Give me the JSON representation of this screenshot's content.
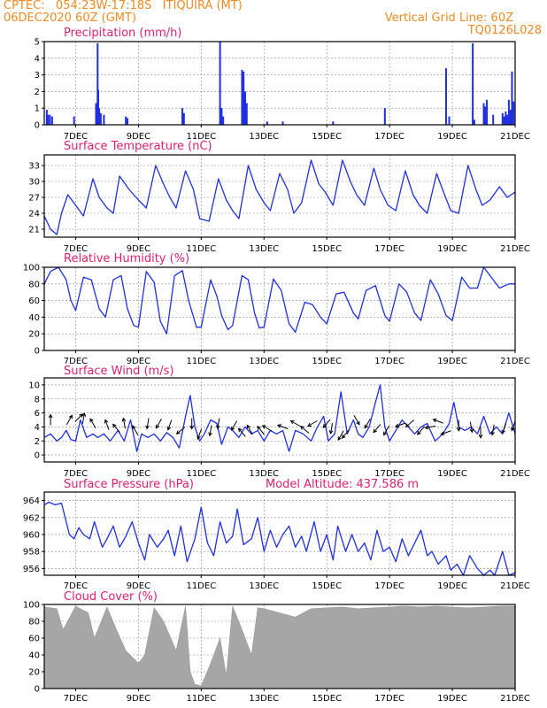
{
  "header": {
    "line1_left": "CPTEC:   054:23W-17:18S   ITIQUIRA (MT)",
    "line2_left": "06DEC2020 60Z (GMT)",
    "line2_right": "Vertical Grid Line: 60Z",
    "line3_right": "TQ0126L028"
  },
  "colors": {
    "header": "#f08a24",
    "title": "#e0206f",
    "series": "#1f2fe0",
    "cloud": "#a6a6a6"
  },
  "x_axis": {
    "labels": [
      "7DEC",
      "9DEC",
      "11DEC",
      "13DEC",
      "15DEC",
      "17DEC",
      "19DEC",
      "21DEC"
    ],
    "days": [
      7,
      9,
      11,
      13,
      15,
      17,
      19,
      21
    ],
    "range": [
      6.0,
      21.0
    ]
  },
  "chart_data": [
    {
      "id": "precip",
      "type": "bar",
      "title": "Precipitation (mm/h)",
      "ylim": [
        0,
        5
      ],
      "yticks": [
        0,
        1,
        2,
        3,
        4,
        5
      ],
      "x": [
        6.08,
        6.12,
        6.18,
        6.25,
        6.95,
        7.65,
        7.7,
        7.72,
        7.75,
        7.8,
        7.9,
        8.6,
        8.65,
        10.4,
        10.45,
        11.6,
        11.65,
        11.7,
        12.3,
        12.35,
        12.4,
        12.45,
        13.1,
        13.6,
        15.2,
        16.85,
        18.8,
        18.9,
        19.65,
        19.7,
        20.0,
        20.05,
        20.1,
        20.3,
        20.6,
        20.65,
        20.7,
        20.75,
        20.8,
        20.85,
        20.9,
        20.95
      ],
      "values": [
        0.9,
        0.6,
        0.6,
        0.5,
        0.5,
        1.3,
        4.9,
        2.1,
        1.0,
        0.7,
        0.6,
        0.5,
        0.4,
        1.0,
        0.7,
        5.0,
        1.0,
        0.5,
        3.3,
        3.2,
        2.0,
        1.3,
        0.2,
        0.2,
        0.2,
        1.0,
        3.4,
        0.5,
        4.9,
        0.3,
        1.3,
        1.1,
        1.5,
        0.6,
        0.7,
        0.5,
        0.8,
        0.6,
        1.5,
        0.9,
        3.2,
        1.4
      ]
    },
    {
      "id": "temp",
      "type": "line",
      "title": "Surface Temperature (nC)",
      "ylim": [
        19.5,
        35
      ],
      "yticks": [
        21,
        24,
        27,
        30,
        33
      ],
      "x": [
        6.0,
        6.2,
        6.4,
        6.55,
        6.75,
        7.0,
        7.25,
        7.55,
        7.75,
        8.0,
        8.2,
        8.4,
        8.7,
        9.0,
        9.25,
        9.55,
        9.8,
        10.0,
        10.2,
        10.5,
        10.75,
        10.95,
        11.25,
        11.55,
        11.8,
        12.0,
        12.2,
        12.5,
        12.75,
        13.0,
        13.2,
        13.5,
        13.75,
        13.95,
        14.2,
        14.5,
        14.75,
        14.95,
        15.2,
        15.5,
        15.75,
        15.95,
        16.2,
        16.5,
        16.7,
        16.95,
        17.2,
        17.5,
        17.75,
        17.95,
        18.2,
        18.5,
        18.75,
        18.95,
        19.2,
        19.5,
        19.75,
        19.95,
        20.2,
        20.5,
        20.75,
        21.0
      ],
      "values": [
        23.5,
        21.0,
        20.0,
        24.0,
        27.5,
        25.5,
        23.5,
        30.5,
        27.0,
        25.0,
        24.0,
        31.0,
        28.5,
        26.5,
        25.0,
        33.0,
        29.5,
        27.0,
        25.0,
        32.0,
        28.5,
        23.0,
        22.5,
        30.5,
        26.5,
        24.5,
        23.0,
        33.0,
        28.5,
        26.0,
        24.5,
        31.5,
        28.5,
        24.0,
        26.0,
        34.0,
        29.5,
        28.0,
        25.5,
        34.0,
        30.0,
        27.5,
        25.5,
        32.5,
        28.5,
        25.5,
        24.5,
        32.0,
        27.5,
        25.5,
        24.0,
        31.5,
        27.5,
        24.5,
        24.0,
        33.0,
        28.5,
        25.5,
        26.5,
        29.0,
        27.0,
        28.0
      ]
    },
    {
      "id": "rh",
      "type": "line",
      "title": "Relative Humidity (%)",
      "ylim": [
        0,
        100
      ],
      "yticks": [
        0,
        20,
        40,
        60,
        80,
        100
      ],
      "x": [
        6.0,
        6.2,
        6.45,
        6.7,
        6.85,
        7.0,
        7.25,
        7.5,
        7.75,
        7.95,
        8.2,
        8.45,
        8.65,
        8.85,
        9.0,
        9.25,
        9.5,
        9.7,
        9.9,
        10.15,
        10.4,
        10.6,
        10.85,
        11.0,
        11.3,
        11.5,
        11.65,
        11.85,
        12.0,
        12.3,
        12.5,
        12.7,
        12.85,
        13.0,
        13.3,
        13.55,
        13.8,
        14.0,
        14.3,
        14.55,
        14.8,
        15.0,
        15.3,
        15.55,
        15.85,
        16.0,
        16.25,
        16.55,
        16.85,
        17.0,
        17.3,
        17.55,
        17.8,
        18.0,
        18.3,
        18.55,
        18.8,
        19.0,
        19.3,
        19.55,
        19.8,
        20.0,
        20.2,
        20.5,
        20.8,
        21.0
      ],
      "values": [
        80,
        95,
        100,
        85,
        60,
        48,
        88,
        85,
        50,
        40,
        85,
        90,
        50,
        30,
        28,
        95,
        82,
        35,
        20,
        90,
        96,
        60,
        28,
        28,
        85,
        65,
        42,
        25,
        30,
        90,
        85,
        45,
        27,
        28,
        86,
        72,
        32,
        22,
        58,
        55,
        40,
        32,
        68,
        70,
        45,
        38,
        72,
        78,
        42,
        35,
        80,
        70,
        45,
        36,
        85,
        68,
        42,
        36,
        88,
        75,
        75,
        100,
        90,
        75,
        80,
        80
      ]
    },
    {
      "id": "wind",
      "type": "line",
      "title": "Surface Wind (m/s)",
      "ylim": [
        -1,
        11
      ],
      "yticks": [
        0,
        2,
        4,
        6,
        8,
        10
      ],
      "x": [
        6.0,
        6.2,
        6.4,
        6.55,
        6.7,
        6.85,
        7.0,
        7.15,
        7.35,
        7.55,
        7.7,
        7.9,
        8.1,
        8.35,
        8.55,
        8.75,
        8.95,
        9.1,
        9.3,
        9.5,
        9.7,
        9.9,
        10.1,
        10.3,
        10.5,
        10.65,
        10.8,
        10.95,
        11.1,
        11.3,
        11.5,
        11.65,
        11.85,
        12.0,
        12.2,
        12.4,
        12.6,
        12.8,
        13.0,
        13.2,
        13.4,
        13.6,
        13.8,
        14.0,
        14.25,
        14.5,
        14.7,
        14.9,
        15.05,
        15.25,
        15.45,
        15.65,
        15.85,
        16.0,
        16.15,
        16.35,
        16.55,
        16.7,
        16.85,
        17.0,
        17.2,
        17.4,
        17.6,
        17.8,
        18.0,
        18.2,
        18.45,
        18.7,
        18.9,
        19.05,
        19.2,
        19.4,
        19.6,
        19.8,
        20.0,
        20.2,
        20.4,
        20.6,
        20.8,
        21.0
      ],
      "values": [
        2.5,
        3.0,
        2.0,
        2.5,
        3.5,
        2.2,
        2.0,
        5.0,
        2.5,
        3.0,
        2.5,
        3.0,
        2.0,
        3.5,
        2.0,
        5.0,
        0.5,
        3.0,
        2.5,
        3.0,
        2.0,
        3.2,
        2.5,
        1.0,
        5.5,
        8.5,
        4.0,
        2.0,
        3.0,
        5.0,
        4.5,
        1.5,
        4.0,
        3.5,
        2.5,
        4.0,
        3.0,
        3.5,
        2.0,
        3.5,
        3.0,
        3.5,
        0.5,
        3.5,
        3.0,
        2.0,
        4.0,
        5.5,
        2.0,
        3.0,
        9.0,
        3.0,
        5.0,
        3.0,
        2.5,
        4.0,
        7.5,
        10.0,
        4.0,
        2.0,
        3.5,
        5.0,
        4.0,
        3.0,
        4.0,
        4.5,
        2.0,
        3.0,
        4.5,
        7.5,
        4.0,
        3.5,
        4.0,
        3.0,
        5.5,
        3.0,
        4.0,
        3.0,
        6.0,
        3.0
      ],
      "arrows": [
        [
          6.2,
          5.0,
          90
        ],
        [
          6.8,
          5.0,
          60
        ],
        [
          7.1,
          5.3,
          45
        ],
        [
          7.25,
          5.2,
          80
        ],
        [
          7.55,
          4.5,
          120
        ],
        [
          8.0,
          4.3,
          110
        ],
        [
          8.3,
          3.8,
          130
        ],
        [
          8.55,
          4.5,
          100
        ],
        [
          8.9,
          3.5,
          120
        ],
        [
          9.3,
          4.5,
          260
        ],
        [
          9.65,
          4.5,
          240
        ],
        [
          10.0,
          4.3,
          250
        ],
        [
          10.35,
          3.5,
          220
        ],
        [
          10.7,
          4.5,
          270
        ],
        [
          10.95,
          3.0,
          250
        ],
        [
          11.3,
          3.5,
          260
        ],
        [
          11.55,
          4.5,
          260
        ],
        [
          12.05,
          4.2,
          240
        ],
        [
          12.3,
          3.2,
          130
        ],
        [
          12.55,
          3.6,
          120
        ],
        [
          12.9,
          3.5,
          130
        ],
        [
          13.1,
          3.8,
          150
        ],
        [
          13.6,
          4.0,
          160
        ],
        [
          14.0,
          4.5,
          150
        ],
        [
          14.3,
          3.6,
          140
        ],
        [
          14.55,
          4.5,
          210
        ],
        [
          15.0,
          4.5,
          230
        ],
        [
          15.15,
          3.8,
          260
        ],
        [
          15.45,
          2.8,
          240
        ],
        [
          15.6,
          3.0,
          230
        ],
        [
          15.95,
          5.0,
          300
        ],
        [
          16.3,
          4.5,
          240
        ],
        [
          16.6,
          3.8,
          230
        ],
        [
          16.9,
          3.5,
          240
        ],
        [
          17.35,
          4.3,
          200
        ],
        [
          17.65,
          4.5,
          220
        ],
        [
          18.0,
          3.5,
          230
        ],
        [
          18.3,
          4.0,
          190
        ],
        [
          18.55,
          4.8,
          160
        ],
        [
          18.8,
          3.2,
          200
        ],
        [
          19.2,
          4.2,
          270
        ],
        [
          19.6,
          4.0,
          280
        ],
        [
          19.9,
          3.2,
          270
        ],
        [
          20.3,
          3.6,
          260
        ],
        [
          20.65,
          3.8,
          250
        ],
        [
          20.95,
          4.2,
          250
        ]
      ]
    },
    {
      "id": "pressure",
      "type": "line",
      "title": "Surface Pressure (hPa)",
      "annotation": "Model Altitude: 437.586 m",
      "ylim": [
        955.2,
        965
      ],
      "yticks": [
        956,
        958,
        960,
        962,
        964
      ],
      "x": [
        6.0,
        6.15,
        6.35,
        6.55,
        6.8,
        6.95,
        7.1,
        7.25,
        7.45,
        7.6,
        7.85,
        8.0,
        8.2,
        8.4,
        8.6,
        8.8,
        9.0,
        9.2,
        9.35,
        9.6,
        9.8,
        9.95,
        10.15,
        10.35,
        10.55,
        10.8,
        11.0,
        11.2,
        11.4,
        11.6,
        11.8,
        12.0,
        12.15,
        12.35,
        12.6,
        12.8,
        13.0,
        13.2,
        13.4,
        13.6,
        13.8,
        14.0,
        14.2,
        14.35,
        14.6,
        14.8,
        15.0,
        15.2,
        15.35,
        15.6,
        15.8,
        16.0,
        16.2,
        16.4,
        16.6,
        16.8,
        17.0,
        17.2,
        17.4,
        17.6,
        17.8,
        18.0,
        18.2,
        18.35,
        18.55,
        18.8,
        18.95,
        19.15,
        19.35,
        19.55,
        19.8,
        20.0,
        20.2,
        20.35,
        20.6,
        20.8,
        21.0
      ],
      "values": [
        963.5,
        963.8,
        963.5,
        963.7,
        960.0,
        959.5,
        960.8,
        960.0,
        959.5,
        961.5,
        958.5,
        959.5,
        961.0,
        958.5,
        959.8,
        961.5,
        959.0,
        957.0,
        960.0,
        958.5,
        959.5,
        960.5,
        957.5,
        961.0,
        956.8,
        959.5,
        963.2,
        959.0,
        957.5,
        961.5,
        959.0,
        959.8,
        963.0,
        958.8,
        959.5,
        962.0,
        958.0,
        960.5,
        958.5,
        960.0,
        961.0,
        958.5,
        959.8,
        958.0,
        961.5,
        958.0,
        960.0,
        957.0,
        961.0,
        958.0,
        960.0,
        958.0,
        959.0,
        957.0,
        960.5,
        958.0,
        958.5,
        956.8,
        959.5,
        957.5,
        959.0,
        960.5,
        957.5,
        958.0,
        956.5,
        957.5,
        955.8,
        956.5,
        954.8,
        957.5,
        956.0,
        955.0,
        955.8,
        954.5,
        958.0,
        954.0,
        955.5
      ]
    },
    {
      "id": "cloud",
      "type": "area",
      "title": "Cloud Cover (%)",
      "ylim": [
        0,
        100
      ],
      "yticks": [
        0,
        20,
        40,
        60,
        80,
        100
      ],
      "x": [
        6.0,
        6.4,
        6.6,
        7.0,
        7.4,
        7.6,
        8.0,
        8.3,
        8.6,
        9.0,
        9.2,
        9.5,
        9.8,
        10.2,
        10.5,
        10.65,
        10.8,
        11.0,
        11.3,
        11.6,
        11.8,
        12.0,
        12.3,
        12.6,
        12.8,
        13.0,
        13.5,
        14.0,
        14.5,
        15.0,
        15.5,
        16.0,
        16.5,
        17.0,
        17.5,
        18.0,
        18.5,
        19.0,
        19.5,
        20.0,
        20.5,
        21.0
      ],
      "values": [
        97,
        95,
        70,
        98,
        90,
        60,
        97,
        70,
        45,
        30,
        40,
        96,
        80,
        45,
        98,
        20,
        5,
        3,
        30,
        60,
        15,
        98,
        70,
        40,
        96,
        95,
        90,
        85,
        95,
        96,
        97,
        95,
        96,
        97,
        98,
        97,
        98,
        97,
        96,
        97,
        98,
        98
      ]
    }
  ]
}
